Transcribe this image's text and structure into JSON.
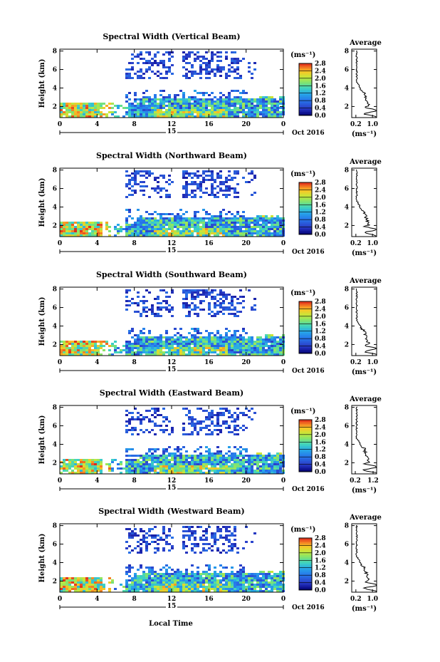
{
  "figure": {
    "x_axis_label": "Local Time",
    "colorbar_unit": "(ms⁻¹)",
    "average_unit": "(ms⁻¹)",
    "date_label": "Oct 2016",
    "day_label": "15",
    "y_axis_label": "Height (km)",
    "average_title": "Average",
    "colors": {
      "very_low": "#000060",
      "low": "#2b3fc9",
      "mid_low": "#27a7e8",
      "mid": "#3fd4c0",
      "mid_high": "#c6e83a",
      "high": "#f5a02a",
      "very_high": "#e0281c"
    }
  },
  "chart_data": [
    {
      "type": "heatmap",
      "title": "Spectral Width (Vertical Beam)",
      "ylabel": "Height (km)",
      "xlabel": "",
      "x_ticks": [
        "0",
        "4",
        "8",
        "12",
        "16",
        "20",
        "0"
      ],
      "y_ticks": [
        "2",
        "4",
        "6",
        "8"
      ],
      "xlim": [
        0,
        24
      ],
      "ylim": [
        0.8,
        8.2
      ],
      "colorbar": {
        "ticks": [
          "0.0",
          "0.4",
          "0.8",
          "1.2",
          "1.6",
          "2.0",
          "2.4",
          "2.8"
        ],
        "range": [
          0,
          2.8
        ]
      },
      "average": {
        "title": "Average",
        "x_ticks": [
          "0.2",
          "1.0"
        ],
        "xlim": [
          0,
          1.2
        ],
        "y_ticks": [
          "2",
          "4",
          "6",
          "8"
        ],
        "ylim": [
          0.8,
          8.2
        ]
      }
    },
    {
      "type": "heatmap",
      "title": "Spectral Width (Northward Beam)",
      "ylabel": "Height (km)",
      "xlabel": "",
      "x_ticks": [
        "0",
        "4",
        "8",
        "12",
        "16",
        "20",
        "0"
      ],
      "y_ticks": [
        "2",
        "4",
        "6",
        "8"
      ],
      "xlim": [
        0,
        24
      ],
      "ylim": [
        0.8,
        8.2
      ],
      "colorbar": {
        "ticks": [
          "0.0",
          "0.4",
          "0.8",
          "1.2",
          "1.6",
          "2.0",
          "2.4",
          "2.8"
        ],
        "range": [
          0,
          2.8
        ]
      },
      "average": {
        "title": "Average",
        "x_ticks": [
          "0.2",
          "1.0"
        ],
        "xlim": [
          0,
          1.2
        ],
        "y_ticks": [
          "2",
          "4",
          "6",
          "8"
        ],
        "ylim": [
          0.8,
          8.2
        ]
      }
    },
    {
      "type": "heatmap",
      "title": "Spectral Width (Southward Beam)",
      "ylabel": "Height (km)",
      "xlabel": "",
      "x_ticks": [
        "0",
        "4",
        "8",
        "12",
        "16",
        "20",
        "0"
      ],
      "y_ticks": [
        "2",
        "4",
        "6",
        "8"
      ],
      "xlim": [
        0,
        24
      ],
      "ylim": [
        0.8,
        8.2
      ],
      "colorbar": {
        "ticks": [
          "0.0",
          "0.4",
          "0.8",
          "1.2",
          "1.6",
          "2.0",
          "2.4",
          "2.8"
        ],
        "range": [
          0,
          2.8
        ]
      },
      "average": {
        "title": "Average",
        "x_ticks": [
          "0.2",
          "1.0"
        ],
        "xlim": [
          0,
          1.2
        ],
        "y_ticks": [
          "2",
          "4",
          "6",
          "8"
        ],
        "ylim": [
          0.8,
          8.2
        ]
      }
    },
    {
      "type": "heatmap",
      "title": "Spectral Width (Eastward Beam)",
      "ylabel": "Height (km)",
      "xlabel": "",
      "x_ticks": [
        "0",
        "4",
        "8",
        "12",
        "16",
        "20",
        "0"
      ],
      "y_ticks": [
        "2",
        "4",
        "6",
        "8"
      ],
      "xlim": [
        0,
        24
      ],
      "ylim": [
        0.8,
        8.2
      ],
      "colorbar": {
        "ticks": [
          "0.0",
          "0.4",
          "0.8",
          "1.2",
          "1.6",
          "2.0",
          "2.4",
          "2.8"
        ],
        "range": [
          0,
          2.8
        ]
      },
      "average": {
        "title": "Average",
        "x_ticks": [
          "0.2",
          "1.2"
        ],
        "xlim": [
          0,
          1.4
        ],
        "y_ticks": [
          "2",
          "4",
          "6",
          "8"
        ],
        "ylim": [
          0.8,
          8.2
        ]
      }
    },
    {
      "type": "heatmap",
      "title": "Spectral Width (Westward Beam)",
      "ylabel": "Height (km)",
      "xlabel": "Local Time",
      "x_ticks": [
        "0",
        "4",
        "8",
        "12",
        "16",
        "20",
        "0"
      ],
      "y_ticks": [
        "2",
        "4",
        "6",
        "8"
      ],
      "xlim": [
        0,
        24
      ],
      "ylim": [
        0.8,
        8.2
      ],
      "colorbar": {
        "ticks": [
          "0.0",
          "0.4",
          "0.8",
          "1.2",
          "1.6",
          "2.0",
          "2.4",
          "2.8"
        ],
        "range": [
          0,
          2.8
        ]
      },
      "average": {
        "title": "Average",
        "x_ticks": [
          "0.2",
          "1.0"
        ],
        "xlim": [
          0,
          1.2
        ],
        "y_ticks": [
          "2",
          "4",
          "6",
          "8"
        ],
        "ylim": [
          0.8,
          8.2
        ]
      }
    }
  ]
}
